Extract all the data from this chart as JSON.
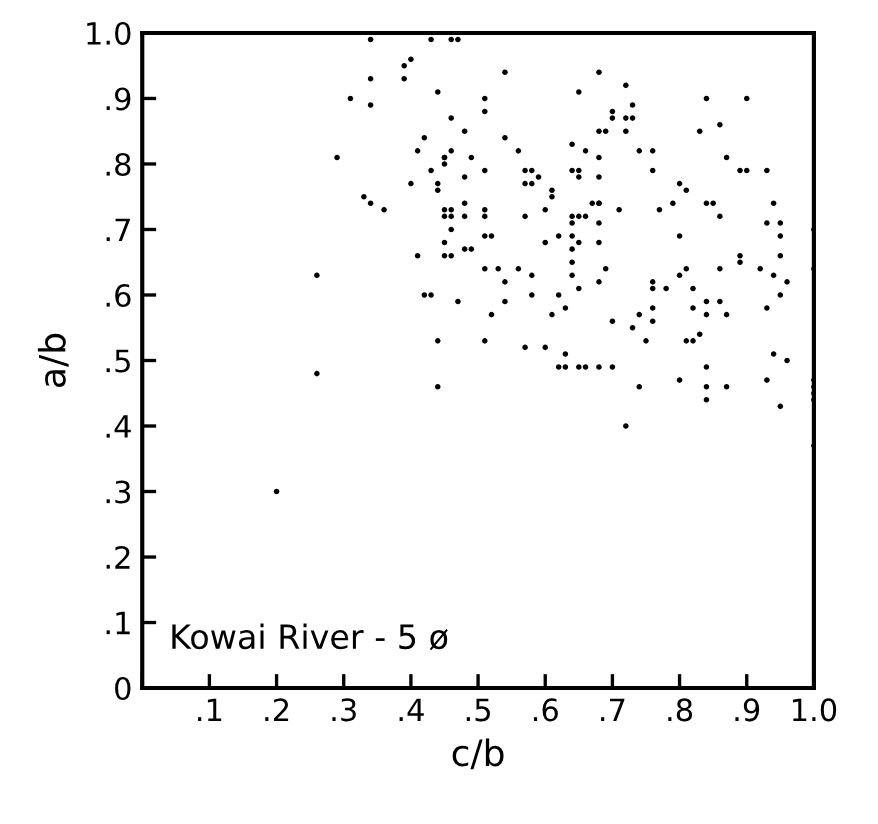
{
  "chart_data": {
    "type": "scatter",
    "xlabel": "c/b",
    "ylabel": "a/b",
    "annotations": [
      "Kowai River - 5 ø"
    ],
    "marker": "circle",
    "grid": false,
    "xlim": [
      0,
      1.0
    ],
    "ylim": [
      0,
      1.0
    ],
    "xticks": [
      {
        "value": 0,
        "label": null
      },
      {
        "value": 0.1,
        "label": ".1"
      },
      {
        "value": 0.2,
        "label": ".2"
      },
      {
        "value": 0.3,
        "label": ".3"
      },
      {
        "value": 0.4,
        "label": ".4"
      },
      {
        "value": 0.5,
        "label": ".5"
      },
      {
        "value": 0.6,
        "label": ".6"
      },
      {
        "value": 0.7,
        "label": ".7"
      },
      {
        "value": 0.8,
        "label": ".8"
      },
      {
        "value": 0.9,
        "label": ".9"
      },
      {
        "value": 1.0,
        "label": "1.0"
      }
    ],
    "yticks": [
      0,
      {
        "value": 0.1,
        "label": ".1"
      },
      {
        "value": 0.2,
        "label": ".2"
      },
      {
        "value": 0.3,
        "label": ".3"
      },
      {
        "value": 0.4,
        "label": ".4"
      },
      {
        "value": 0.5,
        "label": ".5"
      },
      {
        "value": 0.6,
        "label": ".6"
      },
      {
        "value": 0.7,
        "label": ".7"
      },
      {
        "value": 0.8,
        "label": ".8"
      },
      {
        "value": 0.9,
        "label": ".9"
      },
      {
        "value": 1.0,
        "label": "1.0"
      }
    ],
    "series": [
      {
        "color": "#000000",
        "x": [
          0.34,
          0.39,
          0.4,
          0.34,
          0.39,
          0.31,
          0.34,
          0.29,
          0.41,
          0.4,
          0.33,
          0.34,
          0.36,
          0.41,
          0.26,
          0.26,
          0.2,
          0.43,
          0.46,
          0.47,
          0.54,
          0.68,
          0.65,
          0.72,
          0.44,
          0.51,
          0.73,
          0.7,
          0.46,
          0.51,
          0.72,
          0.73,
          0.7,
          0.68,
          0.69,
          0.72,
          0.48,
          0.54,
          0.42,
          0.64,
          0.74,
          0.76,
          0.46,
          0.56,
          0.66,
          0.45,
          0.45,
          0.45,
          0.49,
          0.68,
          0.43,
          0.51,
          0.57,
          0.58,
          0.64,
          0.65,
          0.76,
          0.48,
          0.59,
          0.65,
          0.68,
          0.44,
          0.44,
          0.57,
          0.58,
          0.61,
          0.61,
          0.67,
          0.68,
          0.68,
          0.48,
          0.45,
          0.46,
          0.46,
          0.45,
          0.51,
          0.51,
          0.48,
          0.6,
          0.64,
          0.65,
          0.66,
          0.57,
          0.71,
          0.77,
          0.68,
          0.64,
          0.79,
          0.46,
          0.62,
          0.64,
          0.51,
          0.52,
          0.6,
          0.65,
          0.45,
          0.48,
          0.49,
          0.68,
          0.45,
          0.46,
          0.64,
          0.64,
          0.69,
          0.51,
          0.53,
          0.56,
          0.58,
          0.54,
          0.64,
          0.68,
          0.76,
          0.76,
          0.78,
          0.42,
          0.43,
          0.58,
          0.54,
          0.62,
          0.65,
          0.63,
          0.47,
          0.76,
          0.74,
          0.61,
          0.7,
          0.52,
          0.76,
          0.73,
          0.75,
          0.44,
          0.51,
          0.57,
          0.6,
          0.63,
          0.62,
          0.63,
          0.65,
          0.66,
          0.68,
          0.7,
          0.44,
          0.74,
          0.72,
          0.84,
          0.9,
          0.86,
          0.83,
          0.87,
          0.89,
          0.9,
          0.93,
          0.8,
          0.81,
          0.84,
          0.85,
          0.94,
          0.86,
          0.93,
          0.95,
          0.95,
          0.8,
          0.89,
          0.89,
          0.95,
          0.81,
          0.92,
          0.86,
          0.94,
          0.8,
          0.96,
          0.82,
          0.95,
          0.82,
          0.84,
          0.86,
          0.93,
          0.84,
          0.87,
          0.83,
          0.81,
          0.82,
          0.94,
          0.84,
          0.96,
          0.8,
          0.84,
          0.87,
          0.93,
          0.84,
          0.95,
          1.0,
          1.0,
          1.0,
          1.0,
          1.0,
          1.0,
          1.0
        ],
        "values": [
          0.99,
          0.95,
          0.96,
          0.93,
          0.93,
          0.9,
          0.89,
          0.81,
          0.82,
          0.77,
          0.75,
          0.74,
          0.73,
          0.66,
          0.63,
          0.48,
          0.3,
          0.99,
          0.99,
          0.99,
          0.94,
          0.94,
          0.91,
          0.92,
          0.91,
          0.9,
          0.89,
          0.88,
          0.87,
          0.88,
          0.87,
          0.87,
          0.87,
          0.85,
          0.85,
          0.85,
          0.85,
          0.84,
          0.84,
          0.83,
          0.82,
          0.82,
          0.82,
          0.82,
          0.82,
          0.81,
          0.81,
          0.8,
          0.81,
          0.81,
          0.79,
          0.79,
          0.79,
          0.79,
          0.79,
          0.79,
          0.79,
          0.78,
          0.78,
          0.78,
          0.78,
          0.77,
          0.76,
          0.77,
          0.77,
          0.76,
          0.75,
          0.74,
          0.74,
          0.74,
          0.74,
          0.73,
          0.73,
          0.72,
          0.72,
          0.73,
          0.72,
          0.72,
          0.73,
          0.72,
          0.72,
          0.72,
          0.72,
          0.73,
          0.73,
          0.71,
          0.71,
          0.74,
          0.7,
          0.69,
          0.69,
          0.69,
          0.69,
          0.68,
          0.68,
          0.68,
          0.67,
          0.67,
          0.68,
          0.66,
          0.66,
          0.67,
          0.65,
          0.64,
          0.64,
          0.64,
          0.64,
          0.63,
          0.62,
          0.63,
          0.62,
          0.62,
          0.61,
          0.61,
          0.6,
          0.6,
          0.6,
          0.59,
          0.6,
          0.61,
          0.58,
          0.59,
          0.58,
          0.57,
          0.57,
          0.56,
          0.57,
          0.56,
          0.55,
          0.53,
          0.53,
          0.53,
          0.52,
          0.52,
          0.51,
          0.49,
          0.49,
          0.49,
          0.49,
          0.49,
          0.49,
          0.46,
          0.46,
          0.4,
          0.9,
          0.9,
          0.86,
          0.85,
          0.81,
          0.79,
          0.79,
          0.79,
          0.77,
          0.76,
          0.74,
          0.74,
          0.74,
          0.72,
          0.71,
          0.71,
          0.69,
          0.69,
          0.66,
          0.65,
          0.66,
          0.64,
          0.64,
          0.64,
          0.63,
          0.63,
          0.62,
          0.61,
          0.6,
          0.58,
          0.59,
          0.59,
          0.58,
          0.57,
          0.57,
          0.54,
          0.53,
          0.53,
          0.51,
          0.49,
          0.5,
          0.47,
          0.46,
          0.46,
          0.47,
          0.44,
          0.43,
          0.7,
          0.64,
          0.47,
          0.46,
          0.45,
          0.44,
          0.37
        ]
      }
    ]
  }
}
